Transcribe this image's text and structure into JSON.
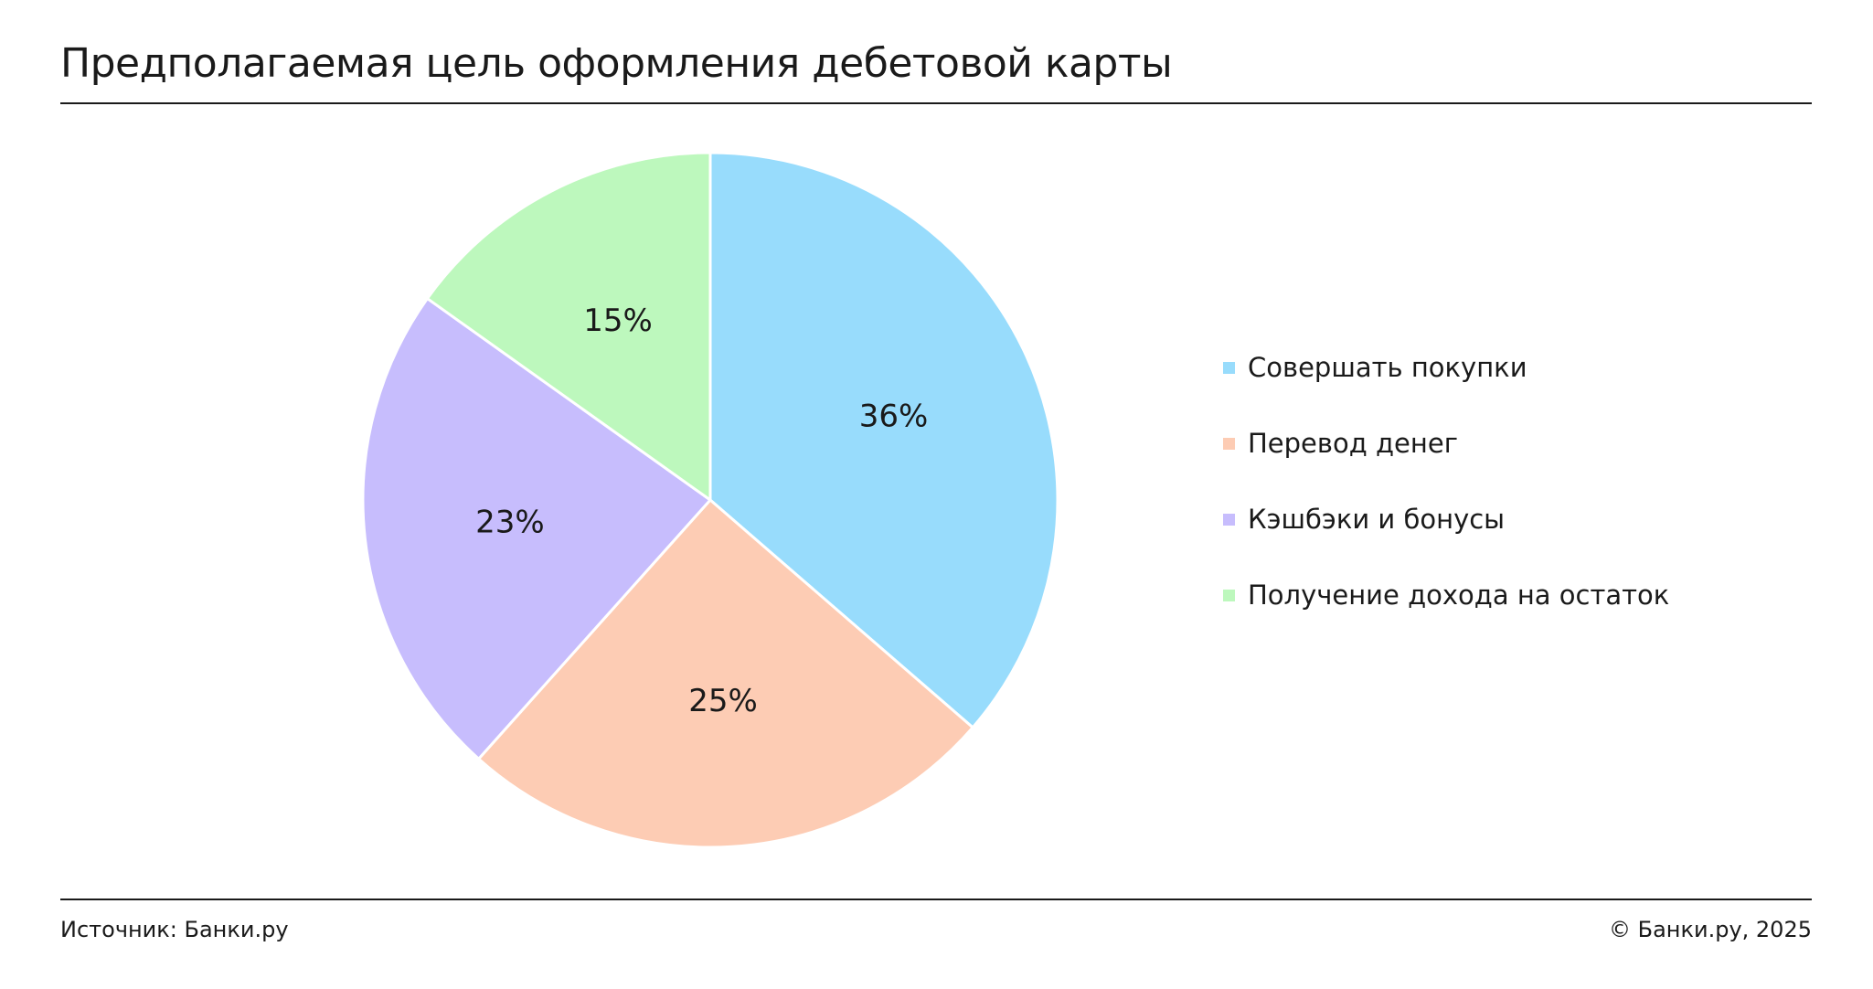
{
  "title": "Предполагаемая цель оформления дебетовой карты",
  "footer": {
    "source": "Источник: Банки.ру",
    "copyright": "© Банки.ру, 2025"
  },
  "chart_data": {
    "type": "pie",
    "title": "Предполагаемая цель оформления дебетовой карты",
    "legend_position": "right",
    "slices": [
      {
        "label": "Совершать покупки",
        "value": 36,
        "value_label": "36%",
        "color": "#98dcfc"
      },
      {
        "label": "Перевод денег",
        "value": 25,
        "value_label": "25%",
        "color": "#fdccb4"
      },
      {
        "label": "Кэшбэки и бонусы",
        "value": 23,
        "value_label": "23%",
        "color": "#c7bdfd"
      },
      {
        "label": "Получение дохода на остаток",
        "value": 15,
        "value_label": "15%",
        "color": "#bdf8bd"
      }
    ]
  }
}
